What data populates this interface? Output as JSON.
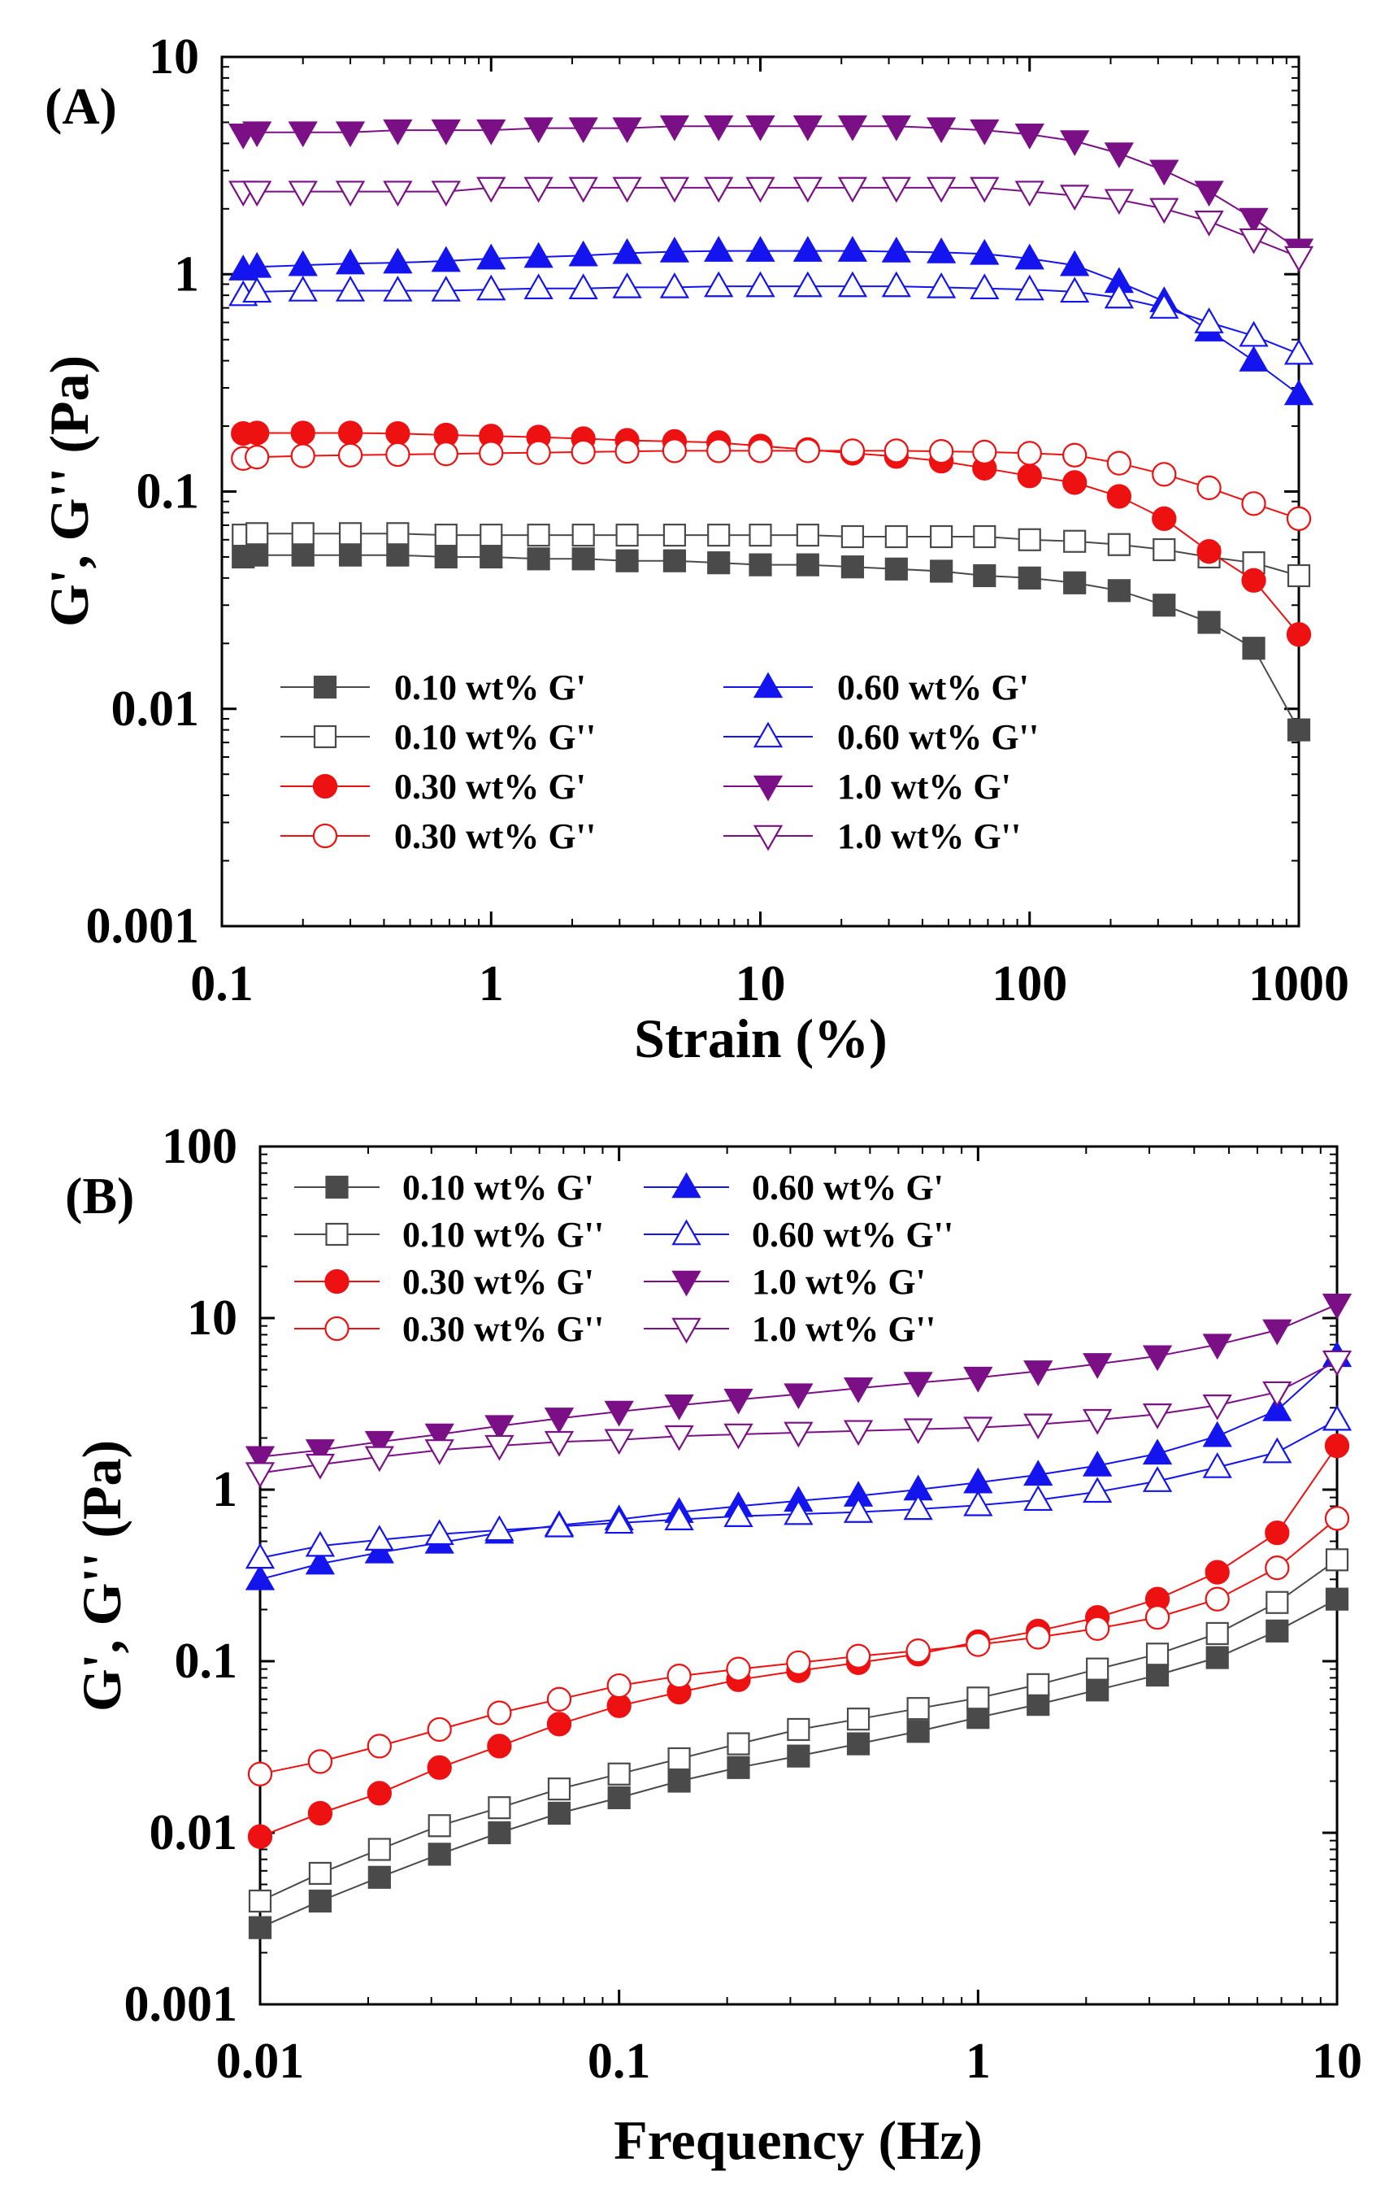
{
  "colors": {
    "c010": "#4a4a4a",
    "c030": "#ee1111",
    "c060": "#1414ee",
    "c10": "#7a0f86"
  },
  "chart_data": [
    {
      "type": "scatter",
      "panel_label": "(A)",
      "xlabel": "Strain (%)",
      "ylabel": "G', G'' (Pa)",
      "xscale": "log",
      "yscale": "log",
      "xlim": [
        0.1,
        1000
      ],
      "ylim": [
        0.001,
        10
      ],
      "x_ticks": [
        "0.1",
        "1",
        "10",
        "100",
        "1000"
      ],
      "y_ticks": [
        "0.001",
        "0.01",
        "0.1",
        "1",
        "10"
      ],
      "legend_position": "lower-left",
      "legend_columns": 2,
      "x": [
        0.12,
        0.135,
        0.2,
        0.3,
        0.45,
        0.68,
        1.0,
        1.5,
        2.2,
        3.2,
        4.8,
        7.0,
        10,
        15,
        22,
        32,
        47,
        68,
        100,
        147,
        215,
        316,
        464,
        680,
        1000
      ],
      "series": [
        {
          "name": "0.10 wt% G'",
          "color": "c010",
          "marker": "square",
          "filled": true,
          "values": [
            0.05,
            0.051,
            0.051,
            0.051,
            0.051,
            0.05,
            0.05,
            0.049,
            0.049,
            0.048,
            0.048,
            0.047,
            0.046,
            0.046,
            0.045,
            0.044,
            0.043,
            0.041,
            0.04,
            0.038,
            0.035,
            0.03,
            0.025,
            0.019,
            0.008
          ]
        },
        {
          "name": "0.10 wt% G''",
          "color": "c010",
          "marker": "square",
          "filled": false,
          "values": [
            0.063,
            0.064,
            0.064,
            0.064,
            0.064,
            0.063,
            0.063,
            0.063,
            0.063,
            0.063,
            0.063,
            0.063,
            0.063,
            0.063,
            0.062,
            0.062,
            0.062,
            0.062,
            0.06,
            0.059,
            0.057,
            0.054,
            0.05,
            0.047,
            0.041
          ]
        },
        {
          "name": "0.30 wt% G'",
          "color": "c030",
          "marker": "circle",
          "filled": true,
          "values": [
            0.185,
            0.186,
            0.186,
            0.186,
            0.185,
            0.182,
            0.18,
            0.178,
            0.175,
            0.172,
            0.17,
            0.168,
            0.162,
            0.156,
            0.15,
            0.145,
            0.138,
            0.128,
            0.118,
            0.11,
            0.095,
            0.075,
            0.053,
            0.039,
            0.022
          ]
        },
        {
          "name": "0.30 wt% G''",
          "color": "c030",
          "marker": "circle",
          "filled": false,
          "values": [
            0.142,
            0.144,
            0.146,
            0.147,
            0.148,
            0.149,
            0.15,
            0.151,
            0.152,
            0.153,
            0.154,
            0.154,
            0.154,
            0.154,
            0.154,
            0.154,
            0.153,
            0.152,
            0.15,
            0.147,
            0.135,
            0.12,
            0.104,
            0.088,
            0.075
          ]
        },
        {
          "name": "0.60 wt% G'",
          "color": "c060",
          "marker": "triangle-up",
          "filled": true,
          "values": [
            1.05,
            1.08,
            1.1,
            1.12,
            1.13,
            1.15,
            1.18,
            1.2,
            1.22,
            1.25,
            1.27,
            1.28,
            1.28,
            1.28,
            1.28,
            1.27,
            1.26,
            1.24,
            1.18,
            1.1,
            0.92,
            0.75,
            0.55,
            0.4,
            0.28
          ]
        },
        {
          "name": "0.60 wt% G''",
          "color": "c060",
          "marker": "triangle-up",
          "filled": false,
          "values": [
            0.8,
            0.83,
            0.84,
            0.84,
            0.84,
            0.84,
            0.85,
            0.86,
            0.86,
            0.87,
            0.87,
            0.88,
            0.88,
            0.88,
            0.88,
            0.88,
            0.87,
            0.86,
            0.85,
            0.83,
            0.78,
            0.7,
            0.6,
            0.52,
            0.43
          ]
        },
        {
          "name": "1.0 wt% G'",
          "color": "c10",
          "marker": "triangle-down",
          "filled": true,
          "values": [
            4.4,
            4.5,
            4.5,
            4.5,
            4.6,
            4.6,
            4.6,
            4.7,
            4.7,
            4.7,
            4.8,
            4.8,
            4.8,
            4.8,
            4.8,
            4.8,
            4.7,
            4.6,
            4.4,
            4.1,
            3.6,
            3.0,
            2.4,
            1.8,
            1.3
          ]
        },
        {
          "name": "1.0 wt% G''",
          "color": "c10",
          "marker": "triangle-down",
          "filled": false,
          "values": [
            2.4,
            2.4,
            2.4,
            2.4,
            2.4,
            2.4,
            2.5,
            2.5,
            2.5,
            2.5,
            2.5,
            2.5,
            2.5,
            2.5,
            2.5,
            2.5,
            2.5,
            2.5,
            2.4,
            2.3,
            2.2,
            2.0,
            1.75,
            1.45,
            1.2
          ]
        }
      ]
    },
    {
      "type": "scatter",
      "panel_label": "(B)",
      "xlabel": "Frequency (Hz)",
      "ylabel": "G', G'' (Pa)",
      "xscale": "log",
      "yscale": "log",
      "xlim": [
        0.01,
        10
      ],
      "ylim": [
        0.001,
        100
      ],
      "x_ticks": [
        "0.01",
        "0.1",
        "1",
        "10"
      ],
      "y_ticks": [
        "0.001",
        "0.01",
        "0.1",
        "1",
        "10",
        "100"
      ],
      "legend_position": "top-left",
      "legend_columns": 2,
      "x": [
        0.01,
        0.0147,
        0.0215,
        0.0316,
        0.0464,
        0.0681,
        0.1,
        0.147,
        0.215,
        0.316,
        0.464,
        0.681,
        1.0,
        1.47,
        2.15,
        3.16,
        4.64,
        6.81,
        10
      ],
      "series": [
        {
          "name": "0.10 wt% G'",
          "color": "c010",
          "marker": "square",
          "filled": true,
          "values": [
            0.0028,
            0.004,
            0.0055,
            0.0075,
            0.01,
            0.013,
            0.016,
            0.02,
            0.024,
            0.028,
            0.033,
            0.039,
            0.047,
            0.056,
            0.068,
            0.083,
            0.105,
            0.15,
            0.23
          ]
        },
        {
          "name": "0.10 wt% G''",
          "color": "c010",
          "marker": "square",
          "filled": false,
          "values": [
            0.004,
            0.0058,
            0.008,
            0.011,
            0.014,
            0.018,
            0.022,
            0.027,
            0.033,
            0.04,
            0.046,
            0.053,
            0.061,
            0.073,
            0.09,
            0.11,
            0.145,
            0.22,
            0.39
          ]
        },
        {
          "name": "0.30 wt% G'",
          "color": "c030",
          "marker": "circle",
          "filled": true,
          "values": [
            0.0095,
            0.013,
            0.017,
            0.024,
            0.032,
            0.043,
            0.055,
            0.066,
            0.078,
            0.088,
            0.098,
            0.11,
            0.13,
            0.15,
            0.18,
            0.23,
            0.33,
            0.56,
            1.8
          ]
        },
        {
          "name": "0.30 wt% G''",
          "color": "c030",
          "marker": "circle",
          "filled": false,
          "values": [
            0.022,
            0.026,
            0.032,
            0.04,
            0.05,
            0.06,
            0.072,
            0.082,
            0.09,
            0.098,
            0.107,
            0.115,
            0.125,
            0.138,
            0.155,
            0.18,
            0.23,
            0.35,
            0.68
          ]
        },
        {
          "name": "0.60 wt% G'",
          "color": "c060",
          "marker": "triangle-up",
          "filled": true,
          "values": [
            0.3,
            0.37,
            0.43,
            0.49,
            0.56,
            0.62,
            0.67,
            0.74,
            0.8,
            0.86,
            0.92,
            1.0,
            1.1,
            1.22,
            1.38,
            1.62,
            2.05,
            2.9,
            6.0
          ]
        },
        {
          "name": "0.60 wt% G''",
          "color": "c060",
          "marker": "triangle-up",
          "filled": false,
          "values": [
            0.4,
            0.47,
            0.51,
            0.55,
            0.58,
            0.61,
            0.64,
            0.67,
            0.7,
            0.72,
            0.74,
            0.77,
            0.81,
            0.87,
            0.97,
            1.12,
            1.35,
            1.65,
            2.55
          ]
        },
        {
          "name": "1.0 wt% G'",
          "color": "c10",
          "marker": "triangle-down",
          "filled": true,
          "values": [
            1.55,
            1.7,
            1.9,
            2.1,
            2.35,
            2.6,
            2.85,
            3.1,
            3.35,
            3.6,
            3.9,
            4.2,
            4.5,
            4.9,
            5.4,
            6.0,
            7.0,
            8.5,
            12.0
          ]
        },
        {
          "name": "1.0 wt% G''",
          "color": "c10",
          "marker": "triangle-down",
          "filled": false,
          "values": [
            1.25,
            1.4,
            1.55,
            1.7,
            1.8,
            1.9,
            1.95,
            2.05,
            2.1,
            2.15,
            2.2,
            2.25,
            2.3,
            2.4,
            2.55,
            2.75,
            3.1,
            3.7,
            5.6
          ]
        }
      ]
    }
  ]
}
